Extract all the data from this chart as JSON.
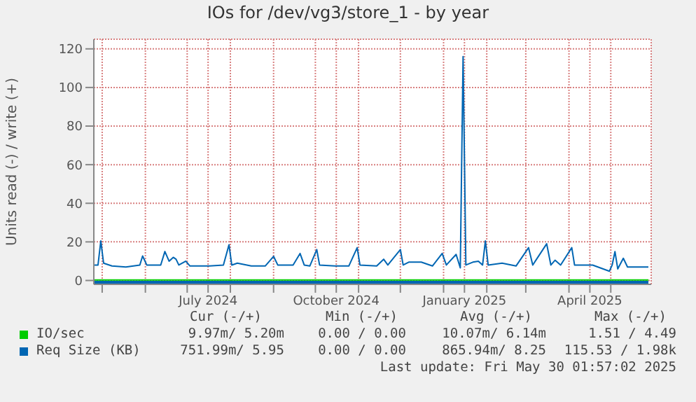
{
  "chart_data": {
    "type": "line",
    "title": "IOs for /dev/vg3/store_1 - by year",
    "ylabel": "Units read (-) / write (+)",
    "xlim": [
      "2024-04-25",
      "2025-05-30"
    ],
    "ylim": [
      -2,
      125
    ],
    "yticks": [
      0,
      20,
      40,
      60,
      80,
      100,
      120
    ],
    "xticks": [
      {
        "value": "2024-05-01",
        "label": null
      },
      {
        "value": "2024-06-01",
        "label": null
      },
      {
        "value": "2024-07-01",
        "label": null
      },
      {
        "value": "2024-07-16",
        "label": "July 2024"
      },
      {
        "value": "2024-08-01",
        "label": null
      },
      {
        "value": "2024-09-01",
        "label": null
      },
      {
        "value": "2024-10-01",
        "label": null
      },
      {
        "value": "2024-10-16",
        "label": "October 2024"
      },
      {
        "value": "2024-11-01",
        "label": null
      },
      {
        "value": "2024-12-01",
        "label": null
      },
      {
        "value": "2025-01-01",
        "label": null
      },
      {
        "value": "2025-01-16",
        "label": "January 2025"
      },
      {
        "value": "2025-02-01",
        "label": null
      },
      {
        "value": "2025-03-01",
        "label": null
      },
      {
        "value": "2025-04-01",
        "label": null
      },
      {
        "value": "2025-04-16",
        "label": "April 2025"
      },
      {
        "value": "2025-05-01",
        "label": null
      }
    ],
    "grid": true,
    "legend": "bottom",
    "series": [
      {
        "name": "IO/sec",
        "color": "#00cc00",
        "x": [
          "2024-04-25",
          "2024-07-31",
          "2024-10-31",
          "2025-01-31",
          "2025-04-30",
          "2025-05-28"
        ],
        "values": [
          0.3,
          0.3,
          0.3,
          0.3,
          0.3,
          0.3
        ]
      },
      {
        "name": "Req Size (KB)",
        "color": "#0066b3",
        "x": [
          "2024-04-25",
          "2024-04-28",
          "2024-04-30",
          "2024-05-02",
          "2024-05-08",
          "2024-05-18",
          "2024-05-28",
          "2024-05-30",
          "2024-06-02",
          "2024-06-12",
          "2024-06-15",
          "2024-06-18",
          "2024-06-21",
          "2024-06-23",
          "2024-06-25",
          "2024-06-30",
          "2024-07-03",
          "2024-07-17",
          "2024-07-27",
          "2024-07-31",
          "2024-08-02",
          "2024-08-06",
          "2024-08-16",
          "2024-08-26",
          "2024-09-01",
          "2024-09-04",
          "2024-09-15",
          "2024-09-20",
          "2024-09-23",
          "2024-09-27",
          "2024-10-02",
          "2024-10-04",
          "2024-10-15",
          "2024-10-25",
          "2024-10-31",
          "2024-11-02",
          "2024-11-14",
          "2024-11-19",
          "2024-11-22",
          "2024-12-01",
          "2024-12-03",
          "2024-12-07",
          "2024-12-16",
          "2024-12-24",
          "2024-12-31",
          "2025-01-03",
          "2025-01-10",
          "2025-01-13",
          "2025-01-15",
          "2025-01-17",
          "2025-01-22",
          "2025-01-26",
          "2025-01-29",
          "2025-01-31",
          "2025-02-02",
          "2025-02-12",
          "2025-02-22",
          "2025-03-03",
          "2025-03-06",
          "2025-03-16",
          "2025-03-19",
          "2025-03-22",
          "2025-03-26",
          "2025-04-03",
          "2025-04-05",
          "2025-04-18",
          "2025-04-30",
          "2025-05-02",
          "2025-05-04",
          "2025-05-06",
          "2025-05-10",
          "2025-05-13",
          "2025-05-23",
          "2025-05-28"
        ],
        "values": [
          8,
          8,
          20.5,
          9,
          7.5,
          7,
          8,
          12.7,
          8,
          8,
          15,
          10,
          12,
          11,
          8,
          10,
          7.5,
          7.5,
          8,
          18.5,
          8,
          9,
          7.5,
          7.5,
          12.5,
          8,
          8,
          14,
          8,
          7.5,
          16,
          8,
          7.5,
          7.5,
          17,
          8,
          7.5,
          11,
          8,
          16,
          8,
          9.5,
          9.5,
          7.5,
          14,
          8,
          13.5,
          6.5,
          116,
          8,
          9.5,
          10,
          8,
          20.5,
          8,
          9,
          7.5,
          17,
          8,
          19,
          8,
          10.5,
          8,
          17,
          8,
          8,
          4.8,
          8,
          15,
          6,
          11.5,
          7,
          7,
          7
        ]
      },
      {
        "color": "#0066b3",
        "x": [
          "2024-04-25",
          "2025-05-28"
        ],
        "values": [
          -0.9,
          -0.9
        ]
      }
    ],
    "annotations": [
      "Cur (-/+)",
      "Min (-/+)",
      "Avg (-/+)",
      "Max (-/+)",
      "9.97m/ 5.20m",
      "0.00 / 0.00",
      "10.07m/ 6.14m",
      "1.51 / 4.49",
      "751.99m/ 5.95",
      "0.00 / 0.00",
      "865.94m/ 8.25",
      "115.53 / 1.98k",
      "Last update: Fri May 30 01:57:02 2025"
    ]
  }
}
